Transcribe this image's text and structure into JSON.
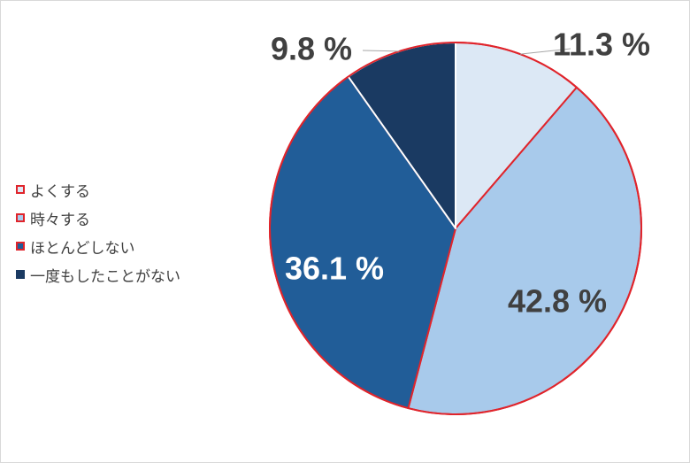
{
  "chart_data": {
    "type": "pie",
    "title": "",
    "start_angle_deg": 0,
    "direction": "clockwise",
    "slices": [
      {
        "label": "よくする",
        "value": 11.3,
        "display": "11.3 %",
        "color": "#dce8f5",
        "border": "#e0242b",
        "text_color": "#404040"
      },
      {
        "label": "時々する",
        "value": 42.8,
        "display": "42.8 %",
        "color": "#a8caeb",
        "border": "#e0242b",
        "text_color": "#404040"
      },
      {
        "label": "ほとんどしない",
        "value": 36.1,
        "display": "36.1 %",
        "color": "#215d98",
        "border": "#e0242b",
        "text_color": "#ffffff"
      },
      {
        "label": "一度もしたことがない",
        "value": 9.8,
        "display": "9.8 %",
        "color": "#1a3a62",
        "border": "#ffffff",
        "text_color": "#404040"
      }
    ],
    "legend_position": "left",
    "pie_outline_color": "#e0242b"
  }
}
